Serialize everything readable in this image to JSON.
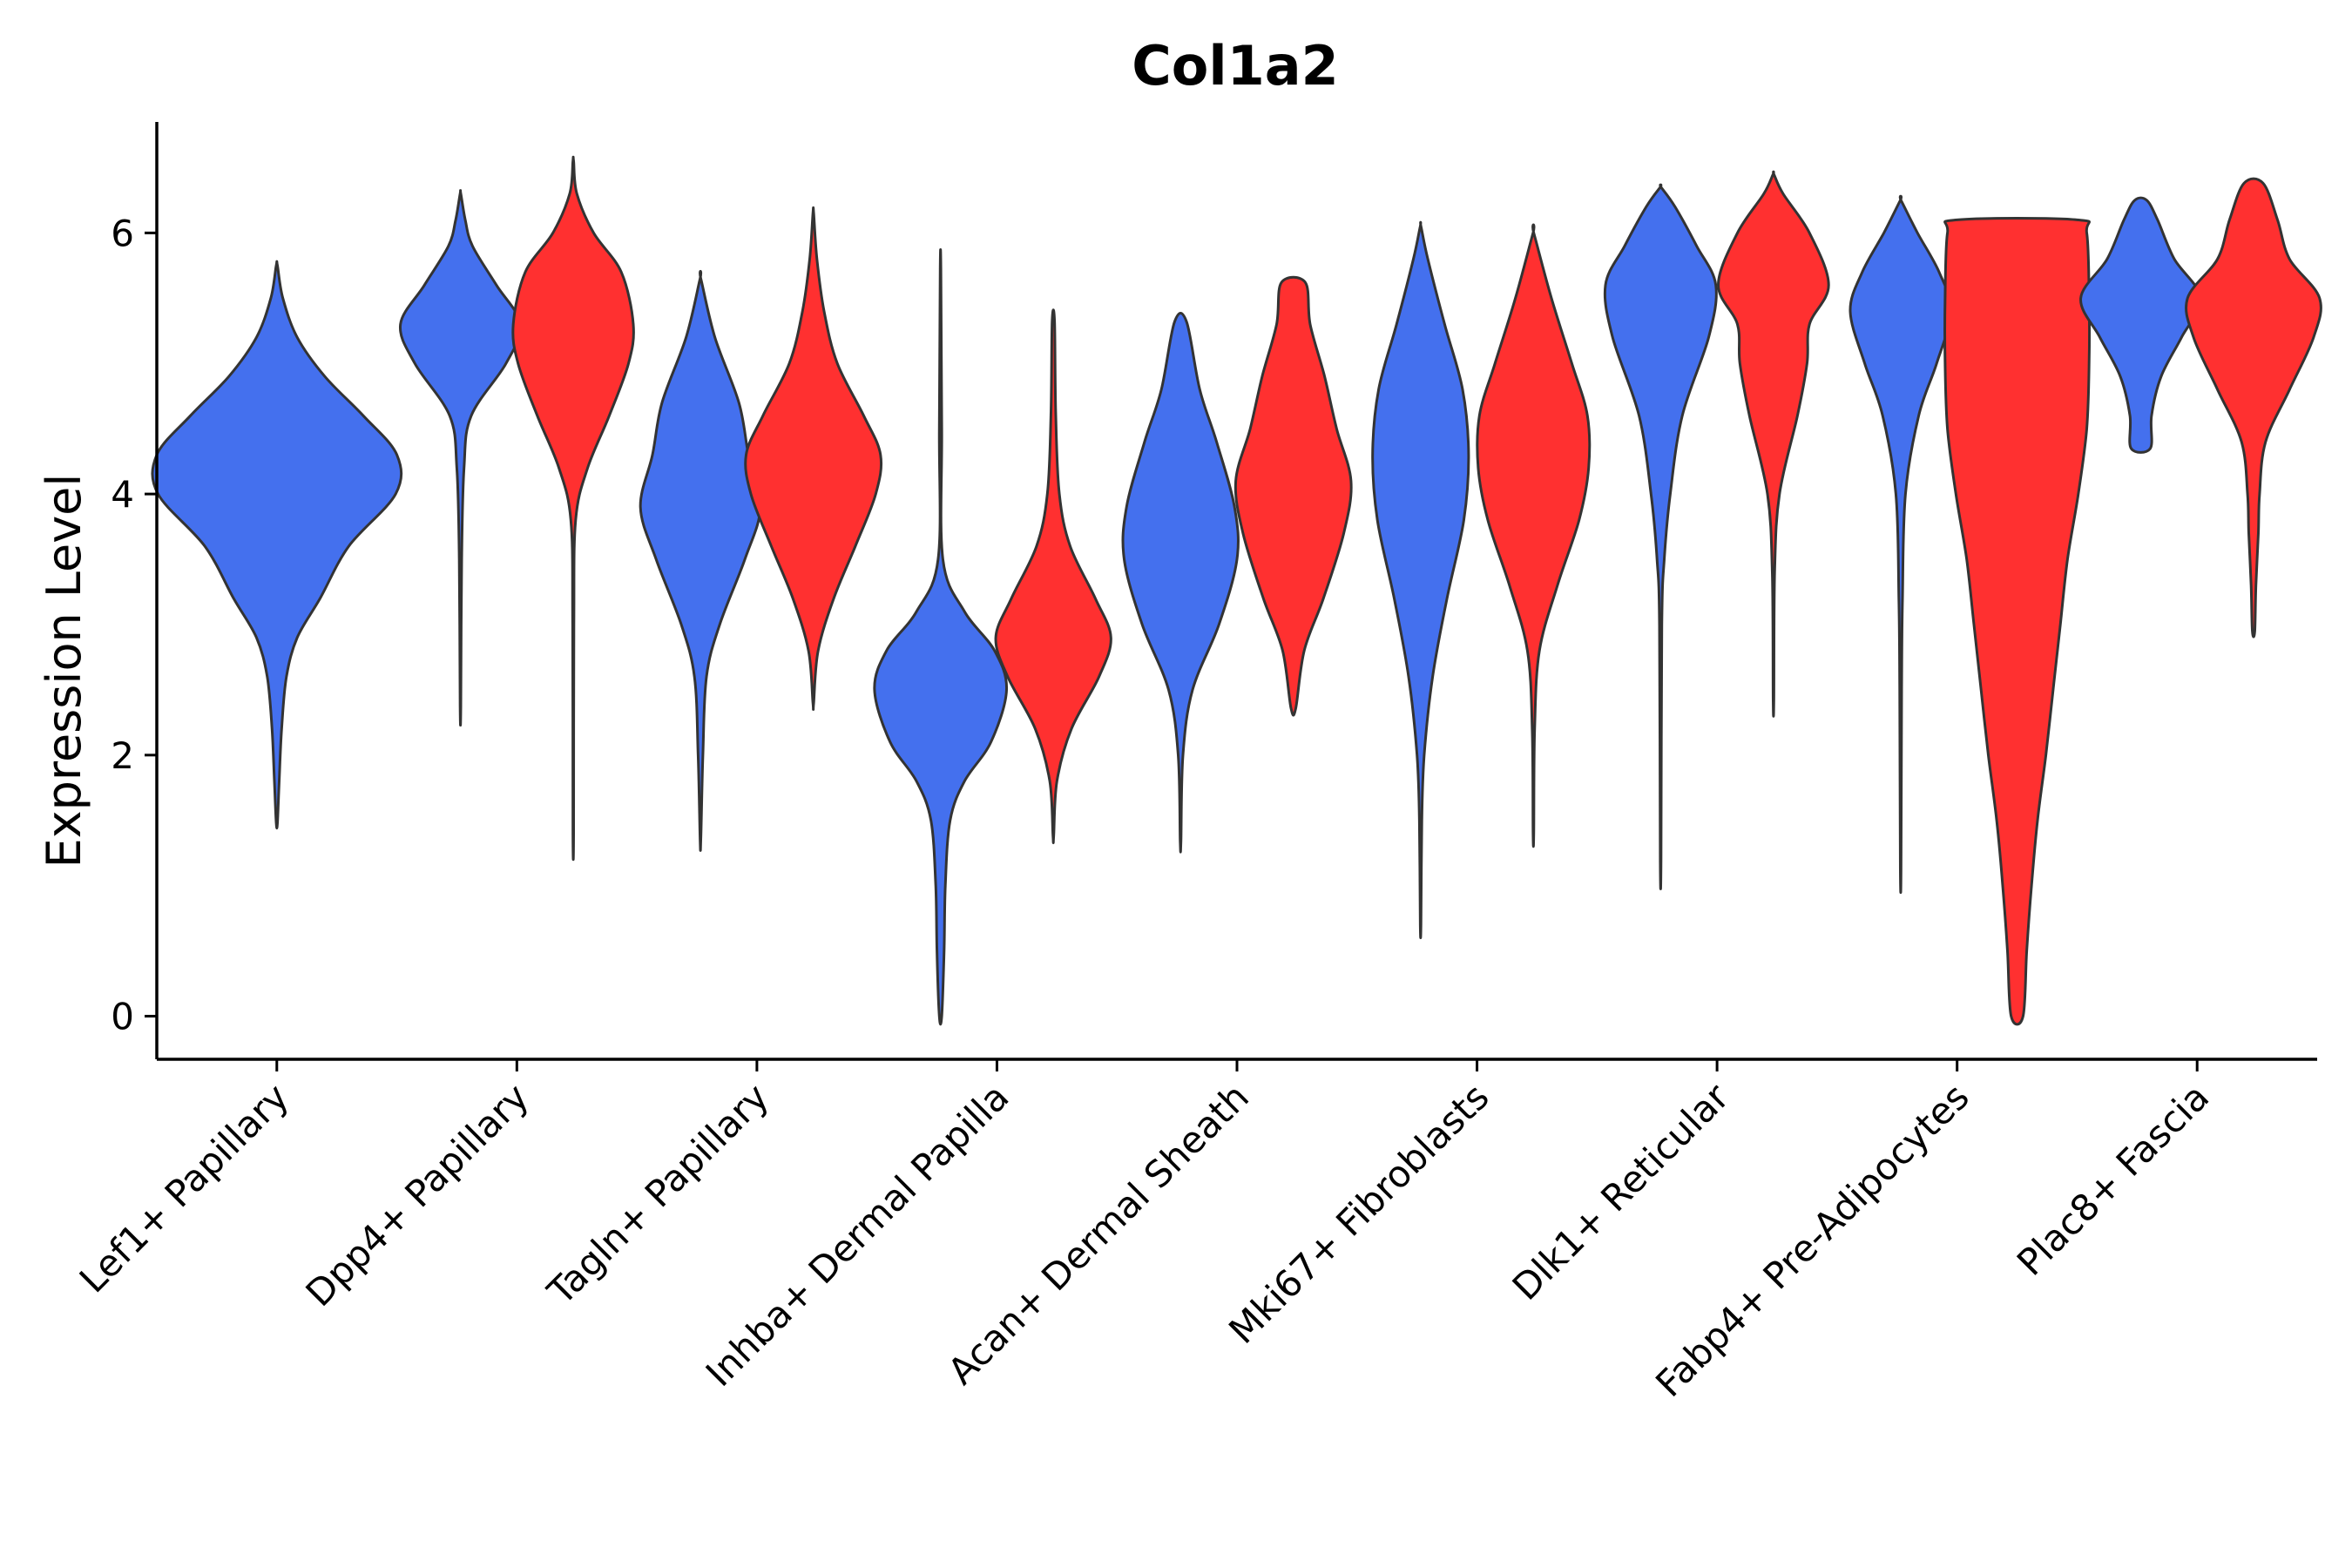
{
  "chart_data": {
    "type": "violin",
    "title": "Col1a2",
    "xlabel": "",
    "ylabel": "Expression Level",
    "ylim": [
      -0.33,
      6.85
    ],
    "yticks": [
      0,
      2,
      4,
      6
    ],
    "legend": "none",
    "group_colors": {
      "blue": "#4470EE",
      "red": "#FF3030"
    },
    "categories": [
      "Lef1+ Papillary",
      "Dpp4+ Papillary",
      "Tagln+ Papillary",
      "Inhba+ Dermal Papilla",
      "Acan+ Dermal Sheath",
      "Mki67+ Fibroblasts",
      "Dlk1+ Reticular",
      "Fabp4+ Pre-Adipocytes",
      "Plac8+ Fascia"
    ],
    "violins": [
      {
        "category": 0,
        "group": "blue",
        "offset": 0,
        "min": 1.48,
        "max": 5.75,
        "profile": [
          [
            1.48,
            0.005
          ],
          [
            1.8,
            0.02
          ],
          [
            2.2,
            0.04
          ],
          [
            2.6,
            0.08
          ],
          [
            2.9,
            0.17
          ],
          [
            3.2,
            0.36
          ],
          [
            3.6,
            0.6
          ],
          [
            4.0,
            0.99
          ],
          [
            4.3,
            1.0
          ],
          [
            4.6,
            0.72
          ],
          [
            4.9,
            0.4
          ],
          [
            5.2,
            0.17
          ],
          [
            5.5,
            0.05
          ],
          [
            5.75,
            0.005
          ]
        ]
      },
      {
        "category": 1,
        "group": "blue",
        "offset": -0.47,
        "min": 2.37,
        "max": 6.3,
        "profile": [
          [
            2.37,
            0.003
          ],
          [
            3.5,
            0.01
          ],
          [
            4.2,
            0.03
          ],
          [
            4.6,
            0.09
          ],
          [
            5.0,
            0.38
          ],
          [
            5.3,
            0.5
          ],
          [
            5.6,
            0.3
          ],
          [
            5.9,
            0.1
          ],
          [
            6.1,
            0.04
          ],
          [
            6.3,
            0.003
          ]
        ]
      },
      {
        "category": 1,
        "group": "red",
        "offset": 0.47,
        "min": 1.4,
        "max": 6.55,
        "profile": [
          [
            1.4,
            0.003
          ],
          [
            3.0,
            0.005
          ],
          [
            3.8,
            0.02
          ],
          [
            4.2,
            0.12
          ],
          [
            4.6,
            0.3
          ],
          [
            5.0,
            0.46
          ],
          [
            5.3,
            0.5
          ],
          [
            5.7,
            0.4
          ],
          [
            6.0,
            0.17
          ],
          [
            6.3,
            0.03
          ],
          [
            6.55,
            0.003
          ]
        ]
      },
      {
        "category": 2,
        "group": "blue",
        "offset": -0.47,
        "min": 1.35,
        "max": 5.65,
        "profile": [
          [
            1.35,
            0.003
          ],
          [
            2.0,
            0.02
          ],
          [
            2.6,
            0.05
          ],
          [
            3.0,
            0.16
          ],
          [
            3.5,
            0.37
          ],
          [
            3.9,
            0.5
          ],
          [
            4.3,
            0.4
          ],
          [
            4.7,
            0.32
          ],
          [
            5.2,
            0.12
          ],
          [
            5.65,
            0.003
          ]
        ]
      },
      {
        "category": 2,
        "group": "red",
        "offset": 0.47,
        "min": 2.4,
        "max": 6.15,
        "profile": [
          [
            2.4,
            0.003
          ],
          [
            2.8,
            0.04
          ],
          [
            3.2,
            0.17
          ],
          [
            3.6,
            0.35
          ],
          [
            4.0,
            0.52
          ],
          [
            4.3,
            0.56
          ],
          [
            4.6,
            0.42
          ],
          [
            5.0,
            0.2
          ],
          [
            5.4,
            0.09
          ],
          [
            5.8,
            0.03
          ],
          [
            6.15,
            0.003
          ]
        ]
      },
      {
        "category": 3,
        "group": "blue",
        "offset": -0.47,
        "min": 0.0,
        "max": 5.72,
        "profile": [
          [
            0.0,
            0.01
          ],
          [
            0.5,
            0.03
          ],
          [
            1.0,
            0.04
          ],
          [
            1.5,
            0.08
          ],
          [
            1.8,
            0.2
          ],
          [
            2.1,
            0.42
          ],
          [
            2.5,
            0.55
          ],
          [
            2.8,
            0.45
          ],
          [
            3.1,
            0.2
          ],
          [
            3.5,
            0.02
          ],
          [
            4.5,
            0.01
          ],
          [
            5.72,
            0.003
          ]
        ]
      },
      {
        "category": 3,
        "group": "red",
        "offset": 0.47,
        "min": 1.38,
        "max": 5.32,
        "profile": [
          [
            1.38,
            0.003
          ],
          [
            1.8,
            0.03
          ],
          [
            2.2,
            0.15
          ],
          [
            2.6,
            0.38
          ],
          [
            2.9,
            0.48
          ],
          [
            3.2,
            0.35
          ],
          [
            3.6,
            0.14
          ],
          [
            4.0,
            0.05
          ],
          [
            4.6,
            0.02
          ],
          [
            5.32,
            0.01
          ]
        ]
      },
      {
        "category": 4,
        "group": "blue",
        "offset": -0.47,
        "min": 1.34,
        "max": 5.32,
        "profile": [
          [
            1.34,
            0.003
          ],
          [
            2.0,
            0.02
          ],
          [
            2.5,
            0.1
          ],
          [
            3.0,
            0.32
          ],
          [
            3.5,
            0.47
          ],
          [
            3.9,
            0.45
          ],
          [
            4.4,
            0.3
          ],
          [
            4.8,
            0.16
          ],
          [
            5.32,
            0.05
          ]
        ]
      },
      {
        "category": 4,
        "group": "red",
        "offset": 0.47,
        "min": 2.36,
        "max": 5.62,
        "profile": [
          [
            2.36,
            0.02
          ],
          [
            2.8,
            0.09
          ],
          [
            3.2,
            0.25
          ],
          [
            3.7,
            0.42
          ],
          [
            4.1,
            0.48
          ],
          [
            4.5,
            0.36
          ],
          [
            4.9,
            0.26
          ],
          [
            5.3,
            0.14
          ],
          [
            5.62,
            0.1
          ]
        ]
      },
      {
        "category": 5,
        "group": "blue",
        "offset": -0.47,
        "min": 0.7,
        "max": 6.05,
        "profile": [
          [
            0.7,
            0.003
          ],
          [
            1.5,
            0.01
          ],
          [
            2.0,
            0.03
          ],
          [
            2.6,
            0.1
          ],
          [
            3.2,
            0.22
          ],
          [
            3.8,
            0.36
          ],
          [
            4.3,
            0.4
          ],
          [
            4.8,
            0.35
          ],
          [
            5.3,
            0.2
          ],
          [
            5.8,
            0.06
          ],
          [
            6.05,
            0.003
          ]
        ]
      },
      {
        "category": 5,
        "group": "red",
        "offset": 0.47,
        "min": 1.4,
        "max": 6.0,
        "profile": [
          [
            1.4,
            0.003
          ],
          [
            2.2,
            0.01
          ],
          [
            2.8,
            0.05
          ],
          [
            3.3,
            0.2
          ],
          [
            3.8,
            0.38
          ],
          [
            4.2,
            0.46
          ],
          [
            4.6,
            0.45
          ],
          [
            5.0,
            0.32
          ],
          [
            5.5,
            0.15
          ],
          [
            6.0,
            0.003
          ]
        ]
      },
      {
        "category": 6,
        "group": "blue",
        "offset": -0.47,
        "min": 1.2,
        "max": 6.35,
        "profile": [
          [
            1.2,
            0.003
          ],
          [
            3.0,
            0.01
          ],
          [
            3.5,
            0.03
          ],
          [
            4.0,
            0.08
          ],
          [
            4.6,
            0.18
          ],
          [
            5.2,
            0.4
          ],
          [
            5.6,
            0.46
          ],
          [
            5.9,
            0.3
          ],
          [
            6.2,
            0.12
          ],
          [
            6.35,
            0.003
          ]
        ]
      },
      {
        "category": 6,
        "group": "red",
        "offset": 0.47,
        "min": 2.42,
        "max": 6.45,
        "profile": [
          [
            2.42,
            0.003
          ],
          [
            3.4,
            0.01
          ],
          [
            4.0,
            0.05
          ],
          [
            4.6,
            0.2
          ],
          [
            5.0,
            0.28
          ],
          [
            5.3,
            0.3
          ],
          [
            5.6,
            0.46
          ],
          [
            6.0,
            0.3
          ],
          [
            6.3,
            0.08
          ],
          [
            6.45,
            0.003
          ]
        ]
      },
      {
        "category": 7,
        "group": "blue",
        "offset": -0.47,
        "min": 1.12,
        "max": 6.25,
        "profile": [
          [
            1.12,
            0.003
          ],
          [
            2.5,
            0.008
          ],
          [
            3.2,
            0.015
          ],
          [
            4.0,
            0.04
          ],
          [
            4.6,
            0.15
          ],
          [
            5.0,
            0.3
          ],
          [
            5.4,
            0.42
          ],
          [
            5.7,
            0.32
          ],
          [
            6.0,
            0.14
          ],
          [
            6.25,
            0.003
          ]
        ]
      },
      {
        "category": 7,
        "group": "red",
        "offset": 0.5,
        "min": 0.0,
        "max": 6.1,
        "profile": [
          [
            0.0,
            0.05
          ],
          [
            0.5,
            0.08
          ],
          [
            1.0,
            0.12
          ],
          [
            1.5,
            0.17
          ],
          [
            2.0,
            0.24
          ],
          [
            2.5,
            0.3
          ],
          [
            3.0,
            0.36
          ],
          [
            3.5,
            0.42
          ],
          [
            4.0,
            0.51
          ],
          [
            4.5,
            0.58
          ],
          [
            5.0,
            0.6
          ],
          [
            5.5,
            0.6
          ],
          [
            6.0,
            0.58
          ],
          [
            6.1,
            0.5
          ]
        ]
      },
      {
        "category": 8,
        "group": "blue",
        "offset": -0.47,
        "min": 4.35,
        "max": 6.25,
        "profile": [
          [
            4.35,
            0.08
          ],
          [
            4.6,
            0.09
          ],
          [
            4.9,
            0.17
          ],
          [
            5.2,
            0.34
          ],
          [
            5.5,
            0.5
          ],
          [
            5.8,
            0.28
          ],
          [
            6.1,
            0.14
          ],
          [
            6.25,
            0.05
          ]
        ]
      },
      {
        "category": 8,
        "group": "red",
        "offset": 0.47,
        "min": 2.95,
        "max": 6.38,
        "profile": [
          [
            2.95,
            0.01
          ],
          [
            3.3,
            0.02
          ],
          [
            3.7,
            0.04
          ],
          [
            4.0,
            0.05
          ],
          [
            4.4,
            0.1
          ],
          [
            4.8,
            0.3
          ],
          [
            5.2,
            0.5
          ],
          [
            5.5,
            0.55
          ],
          [
            5.8,
            0.3
          ],
          [
            6.1,
            0.2
          ],
          [
            6.38,
            0.08
          ]
        ]
      }
    ]
  }
}
